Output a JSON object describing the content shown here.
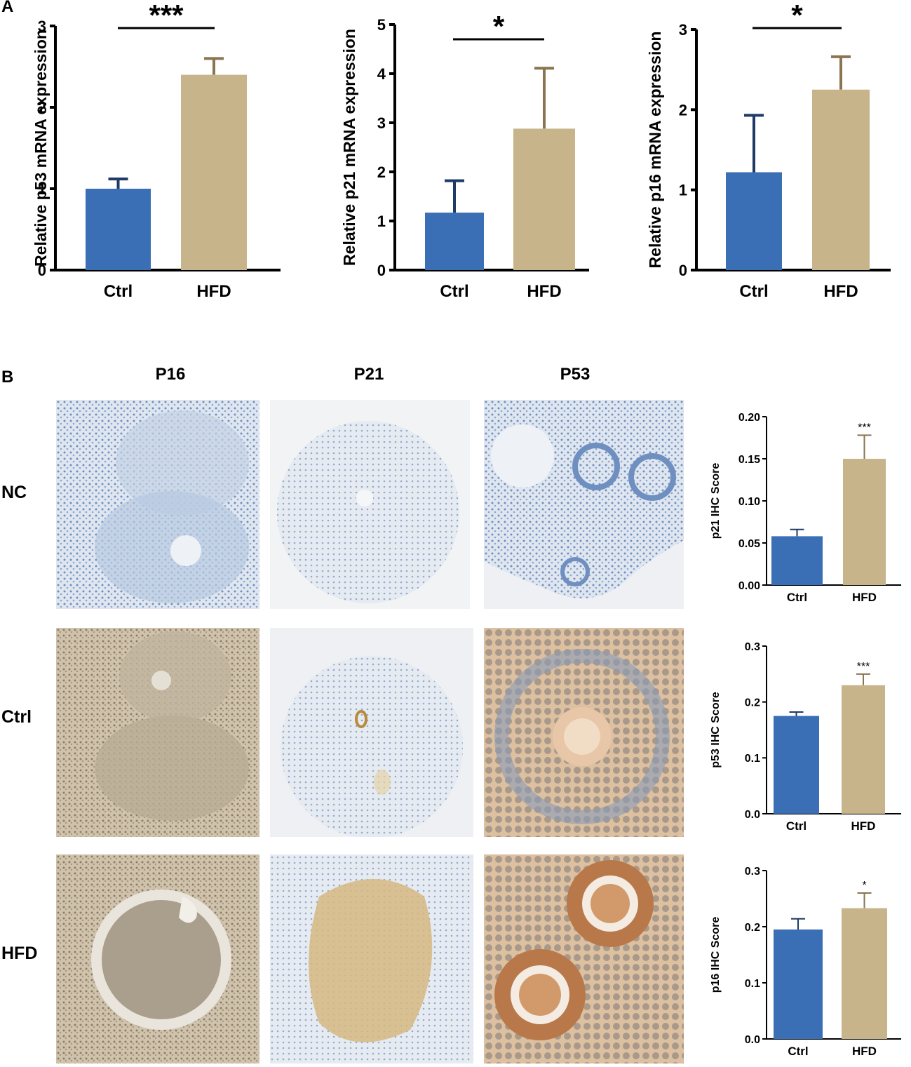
{
  "panel_a_label": "A",
  "panel_b_label": "B",
  "column_headers": [
    "P16",
    "P21",
    "P53"
  ],
  "row_headers": [
    "NC",
    "Ctrl",
    "HFD"
  ],
  "colors": {
    "ctrl": "#3a6fb5",
    "hfd": "#c8b48a",
    "ctrl_err": "#1f3a66",
    "hfd_err": "#8a7550"
  },
  "chart_data": [
    {
      "type": "bar",
      "ylabel": "Relative p53 mRNA expression",
      "categories": [
        "Ctrl",
        "HFD"
      ],
      "values": [
        1.0,
        2.4
      ],
      "errors": [
        0.12,
        0.2
      ],
      "ylim": [
        0,
        3
      ],
      "yticks": [
        "0",
        "1",
        "2",
        "3"
      ],
      "significance": "***"
    },
    {
      "type": "bar",
      "ylabel": "Relative p21 mRNA expression",
      "categories": [
        "Ctrl",
        "HFD"
      ],
      "values": [
        1.17,
        2.88
      ],
      "errors": [
        0.65,
        1.23
      ],
      "ylim": [
        0,
        5
      ],
      "yticks": [
        "0",
        "1",
        "2",
        "3",
        "4",
        "5"
      ],
      "significance": "*"
    },
    {
      "type": "bar",
      "ylabel": "Relative p16 mRNA expression",
      "categories": [
        "Ctrl",
        "HFD"
      ],
      "values": [
        1.22,
        2.25
      ],
      "errors": [
        0.71,
        0.41
      ],
      "ylim": [
        0,
        3
      ],
      "yticks": [
        "0",
        "1",
        "2",
        "3"
      ],
      "significance": "*"
    },
    {
      "type": "bar",
      "ylabel": "p21 IHC Score",
      "categories": [
        "Ctrl",
        "HFD"
      ],
      "values": [
        0.058,
        0.15
      ],
      "errors": [
        0.008,
        0.028
      ],
      "ylim": [
        0,
        0.2
      ],
      "yticks": [
        "0.00",
        "0.05",
        "0.10",
        "0.15",
        "0.20"
      ],
      "significance": "***"
    },
    {
      "type": "bar",
      "ylabel": "p53 IHC Score",
      "categories": [
        "Ctrl",
        "HFD"
      ],
      "values": [
        0.175,
        0.23
      ],
      "errors": [
        0.007,
        0.02
      ],
      "ylim": [
        0,
        0.3
      ],
      "yticks": [
        "0.0",
        "0.1",
        "0.2",
        "0.3"
      ],
      "significance": "***"
    },
    {
      "type": "bar",
      "ylabel": "p16 IHC Score",
      "categories": [
        "Ctrl",
        "HFD"
      ],
      "values": [
        0.195,
        0.233
      ],
      "errors": [
        0.019,
        0.027
      ],
      "ylim": [
        0,
        0.3
      ],
      "yticks": [
        "0.0",
        "0.1",
        "0.2",
        "0.3"
      ],
      "significance": "*"
    }
  ]
}
